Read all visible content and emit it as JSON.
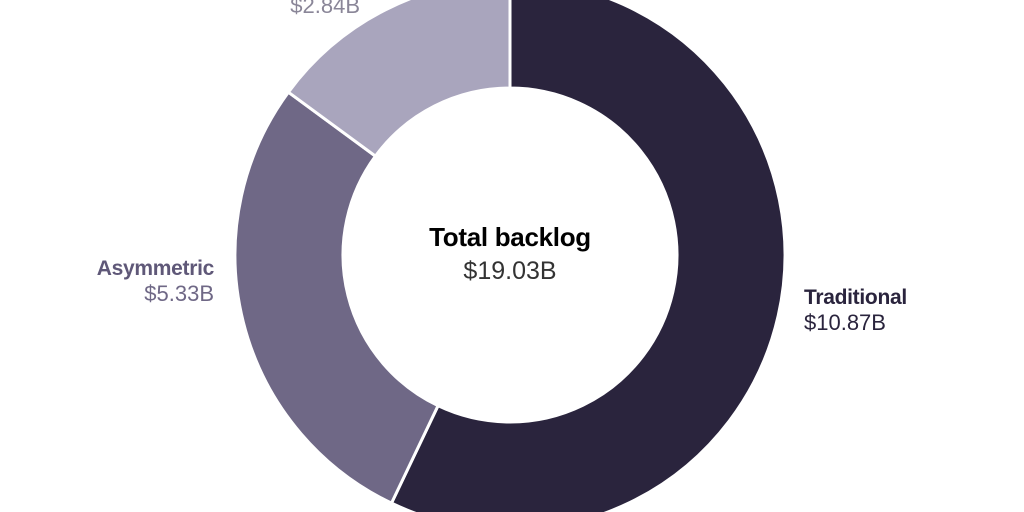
{
  "chart_data": {
    "type": "pie",
    "donut": true,
    "title": "Total backlog",
    "total_label": "$19.03B",
    "categories": [
      "Traditional",
      "Asymmetric",
      ""
    ],
    "values": [
      10.87,
      5.33,
      2.84
    ],
    "value_labels": [
      "$10.87B",
      "$5.33B",
      "$2.84B"
    ],
    "colors": [
      "#2a243d",
      "#6f6886",
      "#a9a5bd"
    ],
    "start_angle_deg": 0,
    "direction": "clockwise",
    "legend": "direct labels"
  },
  "labels": {
    "traditional": {
      "name": "Traditional",
      "value": "$10.87B",
      "color": "#2a243d"
    },
    "asymmetric": {
      "name": "Asymmetric",
      "value": "$5.33B",
      "color": "#6f6886"
    },
    "third": {
      "value": "$2.84B",
      "color": "#8a8698"
    }
  },
  "center": {
    "title": "Total backlog",
    "value": "$19.03B"
  }
}
